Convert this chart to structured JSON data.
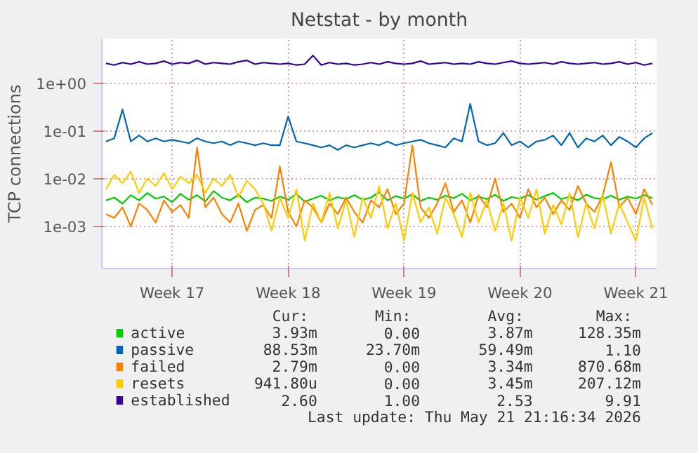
{
  "chart_data": {
    "type": "line",
    "title": "Netstat - by month",
    "ylabel": "TCP connections",
    "log": true,
    "grid": true,
    "legend": "bottom",
    "line_style": "solid",
    "ylim": [
      0.00013,
      8.6
    ],
    "yticks": [
      {
        "value": 0.001,
        "label": "1e-03"
      },
      {
        "value": 0.01,
        "label": "1e-02"
      },
      {
        "value": 0.1,
        "label": "1e-01"
      },
      {
        "value": 1,
        "label": "1e+00"
      }
    ],
    "categories": [
      null,
      null,
      null,
      null,
      null,
      null,
      null,
      null,
      "Week 17",
      null,
      null,
      null,
      null,
      null,
      null,
      null,
      null,
      null,
      null,
      null,
      null,
      null,
      "Week 18",
      null,
      null,
      null,
      null,
      null,
      null,
      null,
      null,
      null,
      null,
      null,
      null,
      null,
      "Week 19",
      null,
      null,
      null,
      null,
      null,
      null,
      null,
      null,
      null,
      null,
      null,
      null,
      null,
      "Week 20",
      null,
      null,
      null,
      null,
      null,
      null,
      null,
      null,
      null,
      null,
      null,
      null,
      null,
      "Week 21",
      null,
      null
    ],
    "series": [
      {
        "name": "active",
        "color": "#00cc00",
        "values": [
          0.0035,
          0.004,
          0.003,
          0.0045,
          0.0035,
          0.005,
          0.0038,
          0.0042,
          0.0032,
          0.0048,
          0.0036,
          0.0045,
          0.0033,
          0.0055,
          0.004,
          0.0035,
          0.0046,
          0.0032,
          0.004,
          0.0038,
          0.0034,
          0.0042,
          0.0036,
          0.0048,
          0.0033,
          0.0038,
          0.0044,
          0.0035,
          0.0041,
          0.0037,
          0.0045,
          0.0036,
          0.004,
          0.0052,
          0.0035,
          0.0043,
          0.0038,
          0.0047,
          0.0034,
          0.004,
          0.0036,
          0.0044,
          0.0039,
          0.0048,
          0.0035,
          0.0042,
          0.0037,
          0.0046,
          0.0034,
          0.0041,
          0.0038,
          0.0045,
          0.0036,
          0.0043,
          0.005,
          0.0037,
          0.0042,
          0.0035,
          0.0046,
          0.0039,
          0.0037,
          0.0044,
          0.0036,
          0.0042,
          0.0038,
          0.0045,
          0.0039
        ]
      },
      {
        "name": "passive",
        "color": "#0066b3",
        "values": [
          0.06,
          0.07,
          0.28,
          0.06,
          0.08,
          0.06,
          0.07,
          0.06,
          0.065,
          0.06,
          0.055,
          0.07,
          0.06,
          0.055,
          0.06,
          0.05,
          0.06,
          0.055,
          0.05,
          0.055,
          0.05,
          0.05,
          0.2,
          0.06,
          0.055,
          0.05,
          0.045,
          0.05,
          0.04,
          0.05,
          0.045,
          0.05,
          0.055,
          0.05,
          0.06,
          0.05,
          0.055,
          0.06,
          0.065,
          0.055,
          0.05,
          0.045,
          0.07,
          0.06,
          0.37,
          0.06,
          0.05,
          0.055,
          0.09,
          0.05,
          0.06,
          0.045,
          0.06,
          0.065,
          0.08,
          0.05,
          0.09,
          0.045,
          0.07,
          0.06,
          0.08,
          0.05,
          0.075,
          0.06,
          0.045,
          0.07,
          0.09
        ]
      },
      {
        "name": "failed",
        "color": "#ff8000",
        "values": [
          0.0018,
          0.0015,
          0.0025,
          0.001,
          0.003,
          0.0022,
          0.0012,
          0.0035,
          0.002,
          0.0028,
          0.0015,
          0.045,
          0.0025,
          0.004,
          0.0018,
          0.0012,
          0.003,
          0.0008,
          0.0022,
          0.0028,
          0.0015,
          0.018,
          0.002,
          0.001,
          0.0035,
          0.0025,
          0.0012,
          0.003,
          0.0018,
          0.004,
          0.002,
          0.0012,
          0.0035,
          0.0025,
          0.006,
          0.0018,
          0.003,
          0.05,
          0.0025,
          0.0015,
          0.003,
          0.008,
          0.002,
          0.0035,
          0.0012,
          0.0045,
          0.0025,
          0.01,
          0.002,
          0.003,
          0.0015,
          0.006,
          0.0025,
          0.004,
          0.0018,
          0.0035,
          0.0022,
          0.007,
          0.003,
          0.002,
          0.0045,
          0.022,
          0.0025,
          0.004,
          0.0018,
          0.006,
          0.0028
        ]
      },
      {
        "name": "resets",
        "color": "#ffcc00",
        "values": [
          0.006,
          0.012,
          0.008,
          0.014,
          0.005,
          0.01,
          0.007,
          0.013,
          0.006,
          0.011,
          0.008,
          0.012,
          0.005,
          0.01,
          0.007,
          0.012,
          0.004,
          0.009,
          0.006,
          0.003,
          0.0008,
          0.004,
          0.0015,
          0.006,
          0.0005,
          0.003,
          0.0012,
          0.005,
          0.0009,
          0.0035,
          0.0006,
          0.004,
          0.0015,
          0.007,
          0.0009,
          0.003,
          0.0005,
          0.005,
          0.0012,
          0.0025,
          0.0007,
          0.004,
          0.0018,
          0.0006,
          0.005,
          0.0012,
          0.0035,
          0.0008,
          0.003,
          0.0005,
          0.004,
          0.0015,
          0.006,
          0.0007,
          0.0028,
          0.0011,
          0.005,
          0.0006,
          0.003,
          0.0009,
          0.0045,
          0.0007,
          0.003,
          0.0012,
          0.0005,
          0.004,
          0.0009
        ]
      },
      {
        "name": "established",
        "color": "#330099",
        "values": [
          2.6,
          2.4,
          2.7,
          2.5,
          2.8,
          2.5,
          2.6,
          2.9,
          2.5,
          2.7,
          2.6,
          3.0,
          2.5,
          2.7,
          2.6,
          2.5,
          2.8,
          3.0,
          2.5,
          2.7,
          2.6,
          2.5,
          2.6,
          2.4,
          2.5,
          3.8,
          2.4,
          2.7,
          2.5,
          2.6,
          2.4,
          2.5,
          2.7,
          2.5,
          2.8,
          2.6,
          2.5,
          2.6,
          2.9,
          2.5,
          2.6,
          2.7,
          2.5,
          2.6,
          2.5,
          2.8,
          2.6,
          2.5,
          2.7,
          2.9,
          2.6,
          2.5,
          2.6,
          2.7,
          2.5,
          2.8,
          2.6,
          2.5,
          2.6,
          2.7,
          2.5,
          2.6,
          2.8,
          2.5,
          2.7,
          2.4,
          2.6
        ]
      }
    ],
    "annotations": [
      "Cur:",
      "Min:",
      "Avg:",
      "Max:",
      "3.93m",
      "0.00",
      "3.87m",
      "128.35m",
      "88.53m",
      "23.70m",
      "59.49m",
      "1.10",
      "2.79m",
      "0.00",
      "3.34m",
      "870.68m",
      "941.80u",
      "0.00",
      "3.45m",
      "207.12m",
      "2.60",
      "1.00",
      "2.53",
      "9.91",
      "Last update: Thu May 21 21:16:34 2026"
    ]
  }
}
